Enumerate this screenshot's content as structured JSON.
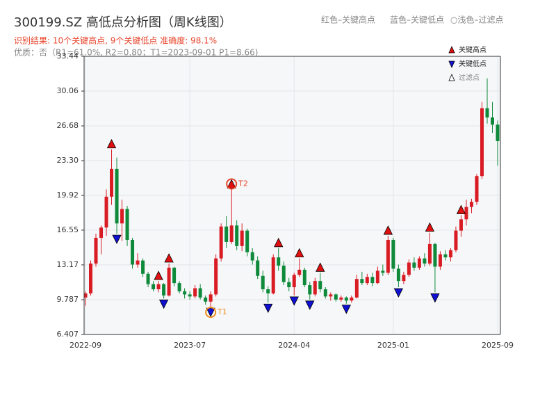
{
  "chart_data": {
    "type": "candlestick",
    "title": "300199.SZ 高低点分析图（周K线图）",
    "subtitle": "识别结果: 10个关键高点, 9个关键低点  准确度: 98.1%",
    "note": "优质：否（R1=61.0%, R2=0.80；T1=2023-09-01 P1=8.66)",
    "header_legend": [
      "红色–关键高点",
      "蓝色–关键低点",
      "○浅色–过滤点"
    ],
    "legend": [
      {
        "name": "关键高点",
        "color": "#e01010"
      },
      {
        "name": "关键低点",
        "color": "#1010d0"
      },
      {
        "name": "过滤点",
        "color": "#ffffff"
      }
    ],
    "up_color": "#d91c24",
    "down_color": "#0e8a3a",
    "categories": [
      "2022-09",
      null,
      null,
      null,
      null,
      null,
      null,
      null,
      null,
      null,
      null,
      null,
      null,
      null,
      null,
      null,
      null,
      null,
      null,
      null,
      "2023-07",
      null,
      null,
      null,
      null,
      null,
      null,
      null,
      null,
      null,
      null,
      null,
      null,
      null,
      null,
      null,
      null,
      null,
      null,
      null,
      "2024-04",
      null,
      null,
      null,
      null,
      null,
      null,
      null,
      null,
      null,
      null,
      null,
      null,
      null,
      null,
      null,
      null,
      null,
      null,
      "2025-01",
      null,
      null,
      null,
      null,
      null,
      null,
      null,
      null,
      null,
      null,
      null,
      null,
      null,
      null,
      null,
      null,
      null,
      null,
      null,
      "2025-09"
    ],
    "candles": [
      [
        10.0,
        10.6,
        9.2,
        10.4
      ],
      [
        10.4,
        13.6,
        10.2,
        13.3
      ],
      [
        13.3,
        16.2,
        13.0,
        15.8
      ],
      [
        15.8,
        17.0,
        14.2,
        16.8
      ],
      [
        16.8,
        20.5,
        16.0,
        19.8
      ],
      [
        19.8,
        24.4,
        19.0,
        22.5
      ],
      [
        22.5,
        23.6,
        16.2,
        17.2
      ],
      [
        17.2,
        19.5,
        15.5,
        18.6
      ],
      [
        18.6,
        18.9,
        15.0,
        15.6
      ],
      [
        15.6,
        15.8,
        12.8,
        13.2
      ],
      [
        13.2,
        14.3,
        12.9,
        13.6
      ],
      [
        13.6,
        13.8,
        12.0,
        12.3
      ],
      [
        12.3,
        12.5,
        11.0,
        11.3
      ],
      [
        11.3,
        11.6,
        10.6,
        10.8
      ],
      [
        10.8,
        11.6,
        10.5,
        11.3
      ],
      [
        11.3,
        11.4,
        9.9,
        10.2
      ],
      [
        10.2,
        13.3,
        10.1,
        12.9
      ],
      [
        12.9,
        13.0,
        11.1,
        11.4
      ],
      [
        11.4,
        11.6,
        10.4,
        10.6
      ],
      [
        10.6,
        10.9,
        9.9,
        10.3
      ],
      [
        10.3,
        10.6,
        9.8,
        10.1
      ],
      [
        10.1,
        11.2,
        9.9,
        10.9
      ],
      [
        10.9,
        11.3,
        9.8,
        10.0
      ],
      [
        10.0,
        10.2,
        9.3,
        9.6
      ],
      [
        9.6,
        10.6,
        9.1,
        10.3
      ],
      [
        10.3,
        14.2,
        10.1,
        13.8
      ],
      [
        13.8,
        17.2,
        13.5,
        16.9
      ],
      [
        16.9,
        17.9,
        14.8,
        15.4
      ],
      [
        15.4,
        20.5,
        15.2,
        17.0
      ],
      [
        17.0,
        17.5,
        14.6,
        15.0
      ],
      [
        15.0,
        17.2,
        14.5,
        16.5
      ],
      [
        16.5,
        16.7,
        14.0,
        14.4
      ],
      [
        14.4,
        14.8,
        13.2,
        13.6
      ],
      [
        13.6,
        14.0,
        11.8,
        12.1
      ],
      [
        12.1,
        12.6,
        10.5,
        10.8
      ],
      [
        10.8,
        11.1,
        9.5,
        10.4
      ],
      [
        10.4,
        14.2,
        10.3,
        13.9
      ],
      [
        13.9,
        14.8,
        12.6,
        13.1
      ],
      [
        13.1,
        13.5,
        11.2,
        11.5
      ],
      [
        11.5,
        11.9,
        10.6,
        11.0
      ],
      [
        11.0,
        12.4,
        10.2,
        12.2
      ],
      [
        12.2,
        13.8,
        12.0,
        12.7
      ],
      [
        12.7,
        12.9,
        11.0,
        11.2
      ],
      [
        11.2,
        11.5,
        9.8,
        10.3
      ],
      [
        10.3,
        11.9,
        10.1,
        11.6
      ],
      [
        11.6,
        12.4,
        10.5,
        10.8
      ],
      [
        10.8,
        11.0,
        9.9,
        10.1
      ],
      [
        10.1,
        10.5,
        9.7,
        10.3
      ],
      [
        10.3,
        10.4,
        9.6,
        9.8
      ],
      [
        9.8,
        10.2,
        9.6,
        10.0
      ],
      [
        10.0,
        10.1,
        9.4,
        9.7
      ],
      [
        9.7,
        10.2,
        9.5,
        10.0
      ],
      [
        10.0,
        12.2,
        9.9,
        11.8
      ],
      [
        11.8,
        12.5,
        11.2,
        11.4
      ],
      [
        11.4,
        12.3,
        11.2,
        12.0
      ],
      [
        12.0,
        12.4,
        11.1,
        11.4
      ],
      [
        11.4,
        13.0,
        11.3,
        12.6
      ],
      [
        12.6,
        13.2,
        12.1,
        12.4
      ],
      [
        12.4,
        16.0,
        12.2,
        15.6
      ],
      [
        15.6,
        15.8,
        12.5,
        12.8
      ],
      [
        12.8,
        13.2,
        11.0,
        11.6
      ],
      [
        11.6,
        12.5,
        11.3,
        12.2
      ],
      [
        12.2,
        13.7,
        12.0,
        13.4
      ],
      [
        13.4,
        13.9,
        12.6,
        12.9
      ],
      [
        12.9,
        14.0,
        12.7,
        13.8
      ],
      [
        13.8,
        14.3,
        13.0,
        13.3
      ],
      [
        13.3,
        16.3,
        13.1,
        15.2
      ],
      [
        15.2,
        15.3,
        10.5,
        13.0
      ],
      [
        13.0,
        14.5,
        12.7,
        14.2
      ],
      [
        14.2,
        14.6,
        13.6,
        13.9
      ],
      [
        13.9,
        14.8,
        13.5,
        14.6
      ],
      [
        14.6,
        16.9,
        14.4,
        16.5
      ],
      [
        16.5,
        18.0,
        15.9,
        17.6
      ],
      [
        17.6,
        19.5,
        17.0,
        18.8
      ],
      [
        18.8,
        19.6,
        18.2,
        19.3
      ],
      [
        19.3,
        22.0,
        19.0,
        21.8
      ],
      [
        21.8,
        29.0,
        21.5,
        28.4
      ],
      [
        28.4,
        31.3,
        26.9,
        27.5
      ],
      [
        27.5,
        29.0,
        26.0,
        26.8
      ],
      [
        26.8,
        27.2,
        22.8,
        25.2
      ]
    ],
    "key_highs": [
      5,
      14,
      16,
      28,
      37,
      41,
      45,
      58,
      66,
      72
    ],
    "key_lows": [
      6,
      15,
      24,
      35,
      40,
      43,
      50,
      60,
      67
    ],
    "annotations": [
      {
        "label": "T1",
        "index": 24,
        "color": "#f08c1a"
      },
      {
        "label": "T2",
        "index": 28,
        "color": "#e8452c"
      }
    ],
    "ylim": [
      6.407,
      33.44
    ],
    "yticks": [
      6.407,
      9.787,
      13.17,
      16.55,
      19.92,
      {
        "value": 23.3,
        "label": "23.30"
      },
      26.68,
      30.06,
      33.44
    ],
    "grid": true
  }
}
